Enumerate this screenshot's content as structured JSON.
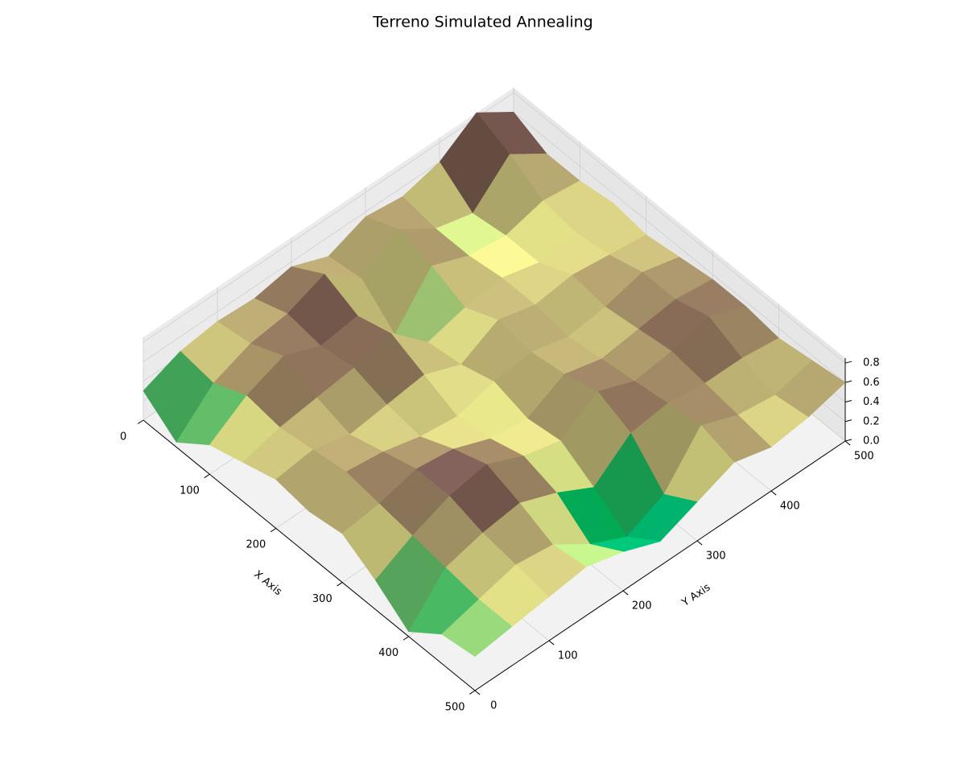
{
  "chart_data": {
    "type": "surface",
    "title": "Terreno Simulated Annealing",
    "xlabel": "X Axis",
    "ylabel": "Y Axis",
    "colormap": "terrain",
    "x": [
      0,
      50,
      100,
      150,
      200,
      250,
      300,
      350,
      400,
      450,
      500
    ],
    "y": [
      0,
      50,
      100,
      150,
      200,
      250,
      300,
      350,
      400,
      450,
      500
    ],
    "z": [
      [
        0.3,
        0.45,
        0.5,
        0.48,
        0.55,
        0.4,
        0.55,
        0.5,
        0.6,
        0.85,
        0.6
      ],
      [
        0.05,
        0.4,
        0.55,
        0.6,
        0.75,
        0.45,
        0.7,
        0.45,
        0.35,
        0.7,
        0.45
      ],
      [
        0.3,
        0.55,
        0.7,
        0.55,
        0.6,
        0.15,
        0.6,
        0.45,
        0.4,
        0.5,
        0.45
      ],
      [
        0.4,
        0.5,
        0.55,
        0.6,
        0.7,
        0.35,
        0.45,
        0.5,
        0.4,
        0.45,
        0.5
      ],
      [
        0.5,
        0.55,
        0.45,
        0.5,
        0.55,
        0.4,
        0.6,
        0.5,
        0.55,
        0.5,
        0.45
      ],
      [
        0.45,
        0.6,
        0.55,
        0.45,
        0.4,
        0.5,
        0.55,
        0.45,
        0.5,
        0.6,
        0.5
      ],
      [
        0.5,
        0.55,
        0.65,
        0.6,
        0.45,
        0.4,
        0.6,
        0.5,
        0.55,
        0.6,
        0.55
      ],
      [
        0.3,
        0.5,
        0.65,
        0.72,
        0.55,
        0.45,
        0.7,
        0.55,
        0.6,
        0.7,
        0.55
      ],
      [
        0.05,
        0.45,
        0.55,
        0.6,
        0.45,
        0.25,
        0.55,
        0.6,
        0.55,
        0.55,
        0.5
      ],
      [
        0.3,
        0.4,
        0.5,
        0.45,
        0.2,
        0.02,
        0.2,
        0.65,
        0.5,
        0.45,
        0.55
      ],
      [
        0.35,
        0.4,
        0.45,
        0.5,
        0.4,
        0.25,
        0.4,
        0.55,
        0.45,
        0.5,
        0.6
      ]
    ],
    "xlim": [
      0,
      500
    ],
    "ylim": [
      0,
      500
    ],
    "zlim": [
      0,
      0.85
    ],
    "xticks": [
      0,
      100,
      200,
      300,
      400,
      500
    ],
    "yticks": [
      0,
      100,
      200,
      300,
      400,
      500
    ],
    "zticks": [
      {
        "value": 0,
        "label": "0.0"
      },
      {
        "value": 0.2,
        "label": "0.2"
      },
      {
        "value": 0.4,
        "label": "0.4"
      },
      {
        "value": 0.6,
        "label": "0.6"
      },
      {
        "value": 0.8,
        "label": "0.8"
      }
    ],
    "grid": true
  }
}
